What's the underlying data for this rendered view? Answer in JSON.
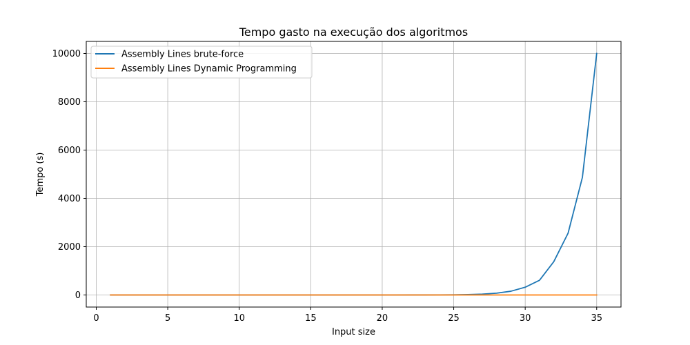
{
  "chart_data": {
    "type": "line",
    "title": "Tempo gasto na execução dos algoritmos",
    "xlabel": "Input size",
    "ylabel": "Tempo (s)",
    "xlim": [
      -0.7,
      36.7
    ],
    "ylim": [
      -500,
      10500
    ],
    "xticks": [
      0,
      5,
      10,
      15,
      20,
      25,
      30,
      35
    ],
    "yticks": [
      0,
      2000,
      4000,
      6000,
      8000,
      10000
    ],
    "grid": true,
    "legend_position": "top-left",
    "series": [
      {
        "name": "Assembly Lines brute-force",
        "color": "#1f77b4",
        "x": [
          1,
          2,
          3,
          4,
          5,
          6,
          7,
          8,
          9,
          10,
          11,
          12,
          13,
          14,
          15,
          16,
          17,
          18,
          19,
          20,
          21,
          22,
          23,
          24,
          25,
          26,
          27,
          28,
          29,
          30,
          31,
          32,
          33,
          34,
          35
        ],
        "y": [
          0,
          0,
          0,
          0,
          0,
          0,
          0,
          0,
          0,
          0,
          0,
          0,
          0,
          0,
          0,
          0,
          0,
          0,
          0,
          0,
          0.5,
          1,
          2,
          4,
          8,
          17,
          36,
          75,
          155,
          320,
          610,
          1380,
          2560,
          4870,
          10000
        ]
      },
      {
        "name": "Assembly Lines Dynamic Programming",
        "color": "#ff7f0e",
        "x": [
          1,
          2,
          3,
          4,
          5,
          6,
          7,
          8,
          9,
          10,
          11,
          12,
          13,
          14,
          15,
          16,
          17,
          18,
          19,
          20,
          21,
          22,
          23,
          24,
          25,
          26,
          27,
          28,
          29,
          30,
          31,
          32,
          33,
          34,
          35
        ],
        "y": [
          0,
          0,
          0,
          0,
          0,
          0,
          0,
          0,
          0,
          0,
          0,
          0,
          0,
          0,
          0,
          0,
          0,
          0,
          0,
          0,
          0,
          0,
          0,
          0,
          0,
          0,
          0,
          0,
          0,
          0,
          0,
          0,
          0,
          0,
          0
        ]
      }
    ]
  }
}
